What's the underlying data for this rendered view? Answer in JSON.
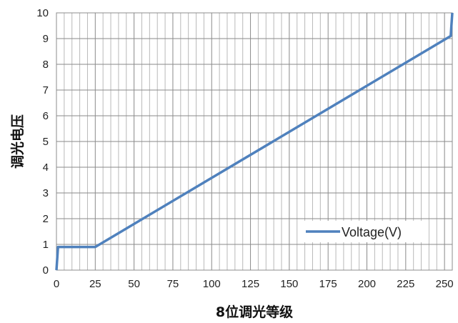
{
  "chart_data": {
    "type": "line",
    "title": "",
    "xlabel": "8位调光等级",
    "ylabel": "调光电压",
    "xlim": [
      0,
      255
    ],
    "ylim": [
      0,
      10
    ],
    "x_ticks": [
      0,
      25,
      50,
      75,
      100,
      125,
      150,
      175,
      200,
      225,
      250
    ],
    "y_ticks": [
      0,
      1,
      2,
      3,
      4,
      5,
      6,
      7,
      8,
      9,
      10
    ],
    "grid": true,
    "legend_position": "bottom-right",
    "series": [
      {
        "name": "Voltage(V)",
        "color": "#4f81bd",
        "x": [
          0,
          1,
          25,
          254,
          255
        ],
        "y": [
          0,
          0.9,
          0.9,
          9.1,
          10
        ]
      }
    ]
  }
}
